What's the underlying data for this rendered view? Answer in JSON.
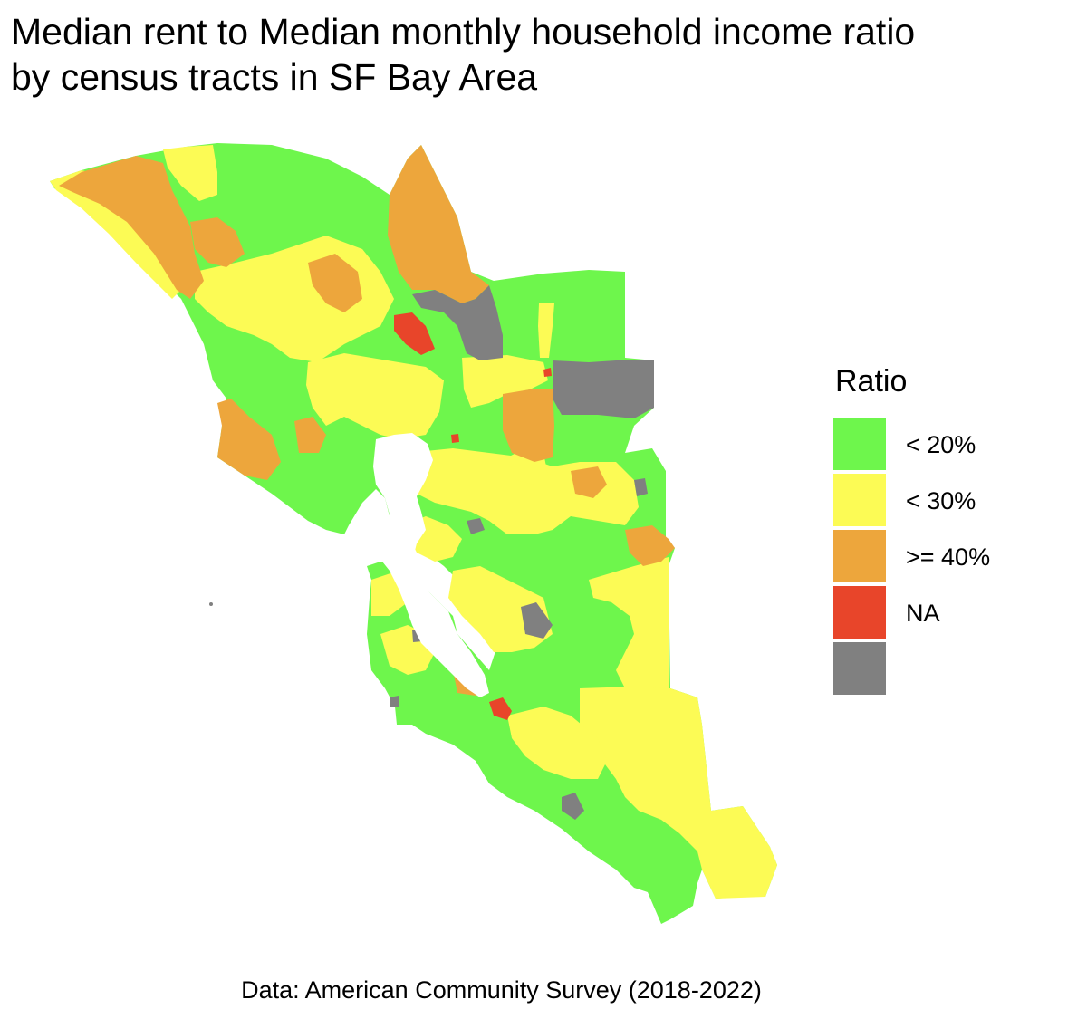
{
  "title_line1": "Median rent to Median monthly household income ratio",
  "title_line2": "by census tracts in SF Bay Area",
  "legend": {
    "title": "Ratio",
    "items": [
      {
        "label": "< 20%",
        "color": "#6ef64c"
      },
      {
        "label": "< 30%",
        "color": "#fcfb55"
      },
      {
        "label": ">= 40%",
        "color": "#e8452a"
      },
      {
        "label": "NA",
        "color": "#808080"
      }
    ]
  },
  "caption": "Data: American Community Survey (2018-2022)",
  "colors": {
    "lt20": "#6ef64c",
    "lt30": "#fcfb55",
    "lt40": "#eda63c",
    "ge40": "#e8452a",
    "na": "#808080"
  }
}
